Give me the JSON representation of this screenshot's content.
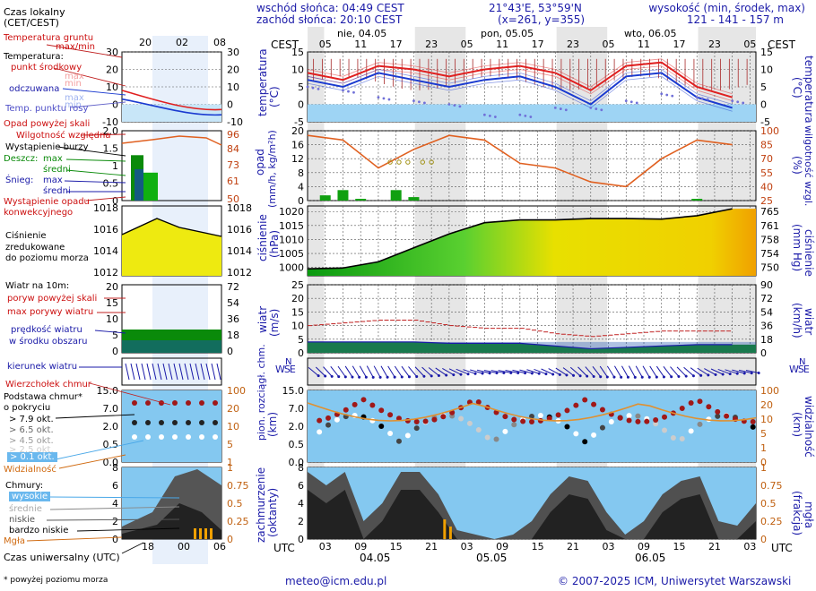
{
  "header": {
    "sunrise": "wschód słońca: 04:49 CEST",
    "sunset": "zachód słońca: 20:10 CEST",
    "coords": "21°43'E, 53°59'N",
    "grid": "(x=261, y=355)",
    "altitude_label": "wysokość (min, środek, max)",
    "altitude_values": "121 - 141 - 157 m"
  },
  "legend": {
    "local_time": "Czas lokalny",
    "local_time_sub": "(CET/CEST)",
    "soil_temp": "Temperatura gruntu",
    "soil_temp_sub": "max/min",
    "temperature": "Temperatura:",
    "mid_point": "punkt środkowy",
    "mid_max": "max",
    "mid_min": "min",
    "perceived": "odczuwana",
    "perc_max": "max",
    "perc_min": "min",
    "dew_point": "Temp. punktu rosy",
    "precip_above": "Opad powyżej skali",
    "humidity": "Wilgotność względna",
    "storm": "Wystąpienie burzy",
    "rain": "Deszcz:",
    "rain_max": "max",
    "rain_mid": "średni",
    "snow": "Śnieg:",
    "snow_max": "max",
    "snow_mid": "średni",
    "precip_occ": "Wystąpienie opadu",
    "precip_occ2": "konwekcyjnego",
    "pressure1": "Ciśnienie",
    "pressure2": "zredukowane",
    "pressure3": "do poziomu morza",
    "wind": "Wiatr na 10m:",
    "gust_above": "poryw powyżej skali",
    "gust_max": "max porywy wiatru",
    "wind_speed": "prędkość wiatru",
    "wind_speed2": "w środku obszaru",
    "wind_dir": "kierunek wiatru",
    "cloud_top": "Wierzchołek chmur",
    "cloud_base": "Podstawa chmur*",
    "cloud_base2": "o pokryciu",
    "okt79": "> 7.9 okt.",
    "okt65": "> 6.5 okt.",
    "okt45": "> 4.5 okt.",
    "okt25": "> 2.5 okt.",
    "okt01": "> 0.1 okt.",
    "visibility": "Widzialność",
    "clouds": "Chmury:",
    "high": "wysokie",
    "mid": "średnie",
    "low": "niskie",
    "very_low": "bardzo niskie",
    "fog": "Mgła",
    "utc_time": "Czas uniwersalny (UTC)",
    "footnote": "* powyżej poziomu morza"
  },
  "axes_labels": {
    "temp": "temperatura",
    "temp_unit": "(°C)",
    "precip": "opad",
    "precip_unit": "(mm/h, kg/m²h)",
    "humidity": "wilgotność wzgl.",
    "humidity_unit": "(%)",
    "pressure": "ciśnienie",
    "pressure_unit": "(hPa)",
    "pressure_unit2": "(mm Hg)",
    "wind": "wiatr",
    "wind_unit": "(m/s)",
    "wind_unit2": "(km/h)",
    "cloud": "pion. rozciągł. chm.",
    "cloud_unit": "(km)",
    "visibility": "widzialność",
    "visibility_unit": "(km)",
    "cover": "zachmurzenie",
    "cover_unit": "(oktanty)",
    "fog": "mgła",
    "fog_unit": "(frakcja)",
    "cest": "CEST",
    "utc": "UTC",
    "wse": "WSE",
    "n": "N"
  },
  "day_labels_top": [
    "nie, 04.05",
    "pon, 05.05",
    "wto, 06.05"
  ],
  "hour_labels_top": [
    "05",
    "11",
    "17",
    "23",
    "05",
    "11",
    "17",
    "23",
    "05",
    "11",
    "17",
    "23",
    "05"
  ],
  "hour_labels_bottom": [
    "03",
    "09",
    "15",
    "21",
    "03",
    "09",
    "15",
    "21",
    "03",
    "09",
    "15",
    "21",
    "03"
  ],
  "day_labels_bottom": [
    "04.05",
    "05.05",
    "06.05"
  ],
  "legend_top_hours": [
    "20",
    "02",
    "08"
  ],
  "legend_bottom_hours": [
    "18",
    "00",
    "06"
  ],
  "footer": {
    "email": "meteo@icm.edu.pl",
    "copyright": "© 2007-2025 ICM, Uniwersytet Warszawski"
  },
  "colors": {
    "axis_label": "#1a1aa8",
    "night_band": "#e6e6e6",
    "temp": "#e02020",
    "perceived": "#1a3ad0",
    "dew": "#7070d8",
    "humidity": "#e06020",
    "rain": "#10a010",
    "pressure_fill": "#e8e000",
    "wind_fill": "#0a7a0a",
    "sky": "#84c8f0",
    "visibility": "#e09030"
  },
  "chart_data": [
    {
      "type": "line",
      "name": "temperatura",
      "x_hours_utc": [
        0,
        6,
        12,
        18,
        24,
        30,
        36,
        42,
        48,
        54,
        60,
        66,
        72
      ],
      "series": [
        {
          "name": "punkt środkowy",
          "values": [
            9,
            7,
            11,
            10,
            8,
            10,
            11,
            9,
            4,
            11,
            12,
            5,
            2
          ]
        },
        {
          "name": "odczuwana",
          "values": [
            7,
            5,
            9,
            7,
            5,
            7,
            8,
            5,
            0,
            8,
            9,
            2,
            -1
          ]
        },
        {
          "name": "Temp. punktu rosy",
          "values": [
            5,
            4,
            2,
            1,
            0,
            -3,
            -3,
            -1,
            -1,
            1,
            3,
            2,
            1
          ]
        }
      ],
      "ylim": [
        -5,
        15
      ],
      "y_ticks": [
        -5,
        0,
        5,
        10,
        15
      ]
    },
    {
      "type": "bar",
      "name": "opad",
      "x_hours_utc": [
        0,
        3,
        6,
        9,
        12,
        15,
        18,
        21,
        24,
        27,
        30,
        33,
        36,
        39,
        42,
        45,
        48,
        51,
        54,
        57,
        60,
        63,
        66,
        69,
        72
      ],
      "values": [
        0,
        1.5,
        3,
        0.5,
        0,
        3,
        1,
        0,
        0,
        0,
        0,
        0,
        0,
        0,
        0,
        0,
        0,
        0,
        0,
        0,
        0,
        0,
        0.5,
        0,
        0
      ],
      "ylim": [
        0,
        20
      ],
      "y_ticks": [
        0,
        4,
        8,
        12,
        16,
        20
      ],
      "humidity_values": [
        95,
        90,
        60,
        80,
        95,
        90,
        65,
        60,
        45,
        40,
        70,
        90,
        85
      ],
      "humidity_ticks": [
        25,
        40,
        55,
        70,
        85,
        100
      ]
    },
    {
      "type": "area",
      "name": "ciśnienie",
      "x_hours_utc": [
        0,
        6,
        12,
        18,
        24,
        30,
        36,
        42,
        48,
        54,
        60,
        66,
        72
      ],
      "values": [
        999.5,
        999.8,
        1002,
        1007,
        1012,
        1016,
        1017,
        1017,
        1017.5,
        1017.5,
        1017.3,
        1018.5,
        1021
      ],
      "ylim": [
        997,
        1022
      ],
      "y_ticks": [
        1000,
        1005,
        1010,
        1015,
        1020
      ],
      "y2_ticks": [
        750,
        754,
        758,
        761,
        765
      ]
    },
    {
      "type": "area",
      "name": "wiatr",
      "x_hours_utc": [
        0,
        6,
        12,
        18,
        24,
        30,
        36,
        42,
        48,
        54,
        60,
        66,
        72
      ],
      "values": [
        4,
        4,
        4,
        4,
        3.5,
        3.5,
        3.5,
        2.5,
        1.5,
        2,
        2.5,
        3,
        3
      ],
      "gusts": [
        10,
        11,
        12,
        12,
        10,
        9,
        9,
        7,
        6,
        7,
        8,
        8,
        8
      ],
      "ylim": [
        0,
        25
      ],
      "y_ticks": [
        0,
        5,
        10,
        15,
        20,
        25
      ],
      "y2_ticks": [
        0,
        18,
        36,
        54,
        72,
        90
      ]
    },
    {
      "type": "scatter",
      "name": "chmury",
      "y_ticks": [
        "0.0",
        "0.5",
        "2.0",
        "7.0",
        "15.0"
      ],
      "y2_ticks": [
        "0",
        "1",
        "5",
        "10",
        "20",
        "100"
      ]
    },
    {
      "type": "area",
      "name": "zachmurzenie",
      "y_ticks": [
        0,
        2,
        4,
        6,
        8
      ],
      "y2_ticks": [
        "0",
        "0.25",
        "0.5",
        "0.75",
        "1"
      ]
    }
  ]
}
